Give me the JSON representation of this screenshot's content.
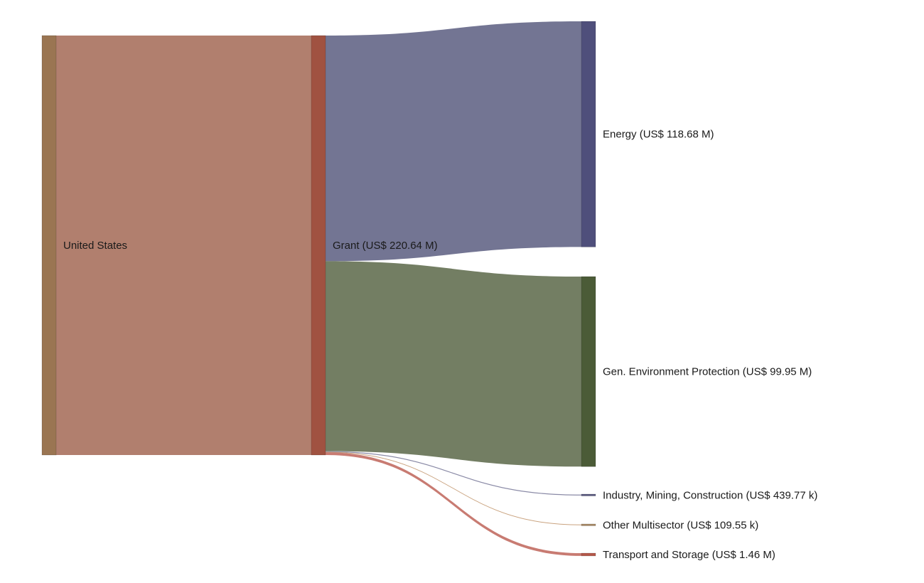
{
  "chart_data": {
    "type": "sankey",
    "units": "US$",
    "nodes": [
      {
        "id": "united-states",
        "label": "United States",
        "column": 0,
        "color": "#9a7552"
      },
      {
        "id": "grant",
        "label": "Grant (US$ 220.64 M)",
        "column": 1,
        "color": "#a05241"
      },
      {
        "id": "energy",
        "label": "Energy (US$ 118.68 M)",
        "column": 2,
        "color": "#4f4f7b",
        "value_musd": 118.68
      },
      {
        "id": "gen-env",
        "label": "Gen. Environment Protection (US$ 99.95 M)",
        "column": 2,
        "color": "#4b5b37",
        "value_musd": 99.95
      },
      {
        "id": "industry",
        "label": "Industry, Mining, Construction (US$ 439.77 k)",
        "column": 2,
        "color": "#5a5a80",
        "value_musd": 0.43977
      },
      {
        "id": "other-multi",
        "label": "Other Multisector (US$ 109.55 k)",
        "column": 2,
        "color": "#a98a66",
        "value_musd": 0.10955
      },
      {
        "id": "transport",
        "label": "Transport and Storage (US$ 1.46 M)",
        "column": 2,
        "color": "#b4584a",
        "value_musd": 1.46
      }
    ],
    "links": [
      {
        "source": "united-states",
        "target": "grant",
        "value_musd": 220.64,
        "color": "#b17f6e"
      },
      {
        "source": "grant",
        "target": "energy",
        "value_musd": 118.68,
        "color": "#737593"
      },
      {
        "source": "grant",
        "target": "gen-env",
        "value_musd": 99.95,
        "color": "#737e63"
      },
      {
        "source": "grant",
        "target": "industry",
        "value_musd": 0.43977,
        "color": "#8a8aa6"
      },
      {
        "source": "grant",
        "target": "other-multi",
        "value_musd": 0.10955,
        "color": "#c9a27e"
      },
      {
        "source": "grant",
        "target": "transport",
        "value_musd": 1.46,
        "color": "#c87b72"
      }
    ]
  }
}
